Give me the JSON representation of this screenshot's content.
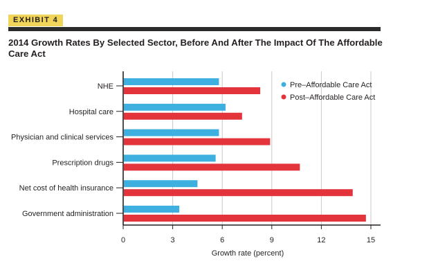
{
  "exhibit_label": "EXHIBIT 4",
  "chart_data": {
    "type": "bar",
    "orientation": "horizontal",
    "title": "2014 Growth Rates By Selected Sector, Before And After The Impact Of The Affordable Care Act",
    "xlabel": "Growth rate (percent)",
    "ylabel": "",
    "xlim": [
      0,
      15
    ],
    "xticks": [
      0,
      3,
      6,
      9,
      12,
      15
    ],
    "grid": "vertical",
    "legend_position": "top-right",
    "categories": [
      "NHE",
      "Hospital care",
      "Physician and clinical services",
      "Prescription drugs",
      "Net cost of health insurance",
      "Government administration"
    ],
    "series": [
      {
        "name": "Pre–Affordable Care Act",
        "color": "#3db0e0",
        "values": [
          5.8,
          6.2,
          5.8,
          5.6,
          4.5,
          3.4
        ]
      },
      {
        "name": "Post–Affordable Care Act",
        "color": "#e3343c",
        "values": [
          8.3,
          7.2,
          8.9,
          10.7,
          13.9,
          14.7
        ]
      }
    ]
  }
}
